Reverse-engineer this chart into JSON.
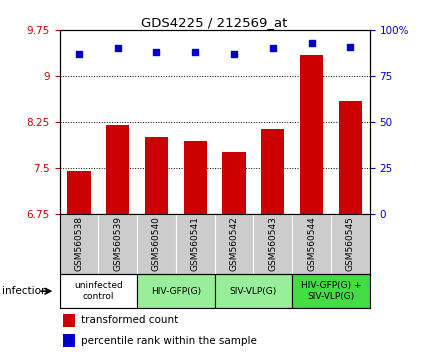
{
  "title": "GDS4225 / 212569_at",
  "samples": [
    "GSM560538",
    "GSM560539",
    "GSM560540",
    "GSM560541",
    "GSM560542",
    "GSM560543",
    "GSM560544",
    "GSM560545"
  ],
  "bar_values": [
    7.46,
    8.2,
    8.0,
    7.95,
    7.77,
    8.13,
    9.35,
    8.6
  ],
  "dot_values": [
    87,
    90,
    88,
    88,
    87,
    90,
    93,
    91
  ],
  "ylim_left": [
    6.75,
    9.75
  ],
  "ylim_right": [
    0,
    100
  ],
  "yticks_left": [
    6.75,
    7.5,
    8.25,
    9.0,
    9.75
  ],
  "ytick_labels_left": [
    "6.75",
    "7.5",
    "8.25",
    "9",
    "9.75"
  ],
  "yticks_right": [
    0,
    25,
    50,
    75,
    100
  ],
  "ytick_labels_right": [
    "0",
    "25",
    "50",
    "75",
    "100%"
  ],
  "hlines": [
    7.5,
    8.25,
    9.0
  ],
  "bar_color": "#cc0000",
  "dot_color": "#0000cc",
  "groups": [
    {
      "label": "uninfected\ncontrol",
      "start": 0,
      "end": 2,
      "color": "#ffffff"
    },
    {
      "label": "HIV-GFP(G)",
      "start": 2,
      "end": 4,
      "color": "#99ee99"
    },
    {
      "label": "SIV-VLP(G)",
      "start": 4,
      "end": 6,
      "color": "#99ee99"
    },
    {
      "label": "HIV-GFP(G) +\nSIV-VLP(G)",
      "start": 6,
      "end": 8,
      "color": "#44dd44"
    }
  ],
  "sample_area_bg": "#cccccc",
  "legend_items": [
    {
      "label": "transformed count",
      "color": "#cc0000"
    },
    {
      "label": "percentile rank within the sample",
      "color": "#0000cc"
    }
  ],
  "infection_label": "infection"
}
